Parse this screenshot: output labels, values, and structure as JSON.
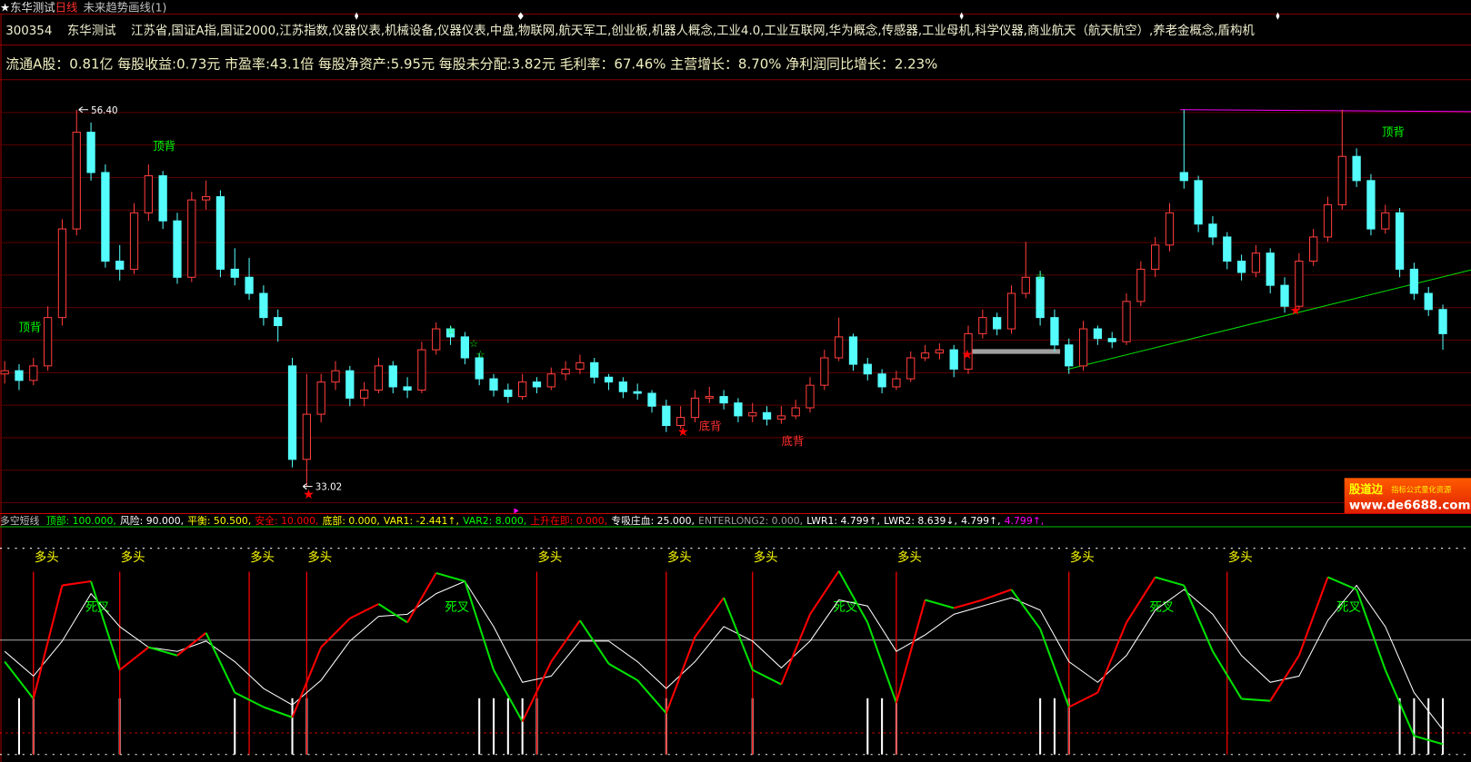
{
  "titlebar": {
    "star": "★",
    "name": "东华测试",
    "period": "日线",
    "tool": "未来趋势画线(1)"
  },
  "info_row": {
    "code": "300354",
    "name": "东华测试",
    "sectors": "江苏省,国证A指,国证2000,江苏指数,仪器仪表,机械设备,仪器仪表,中盘,物联网,航天军工,创业板,机器人概念,工业4.0,工业互联网,华为概念,传感器,工业母机,科学仪器,商业航天（航天航空）,养老金概念,盾构机"
  },
  "fundamentals": "流通A股：0.81亿 每股收益:0.73元 市盈率:43.1倍 每股净资产:5.95元 每股未分配:3.82元 毛利率：67.46% 主营增长：8.70% 净利润同比增长：2.23%",
  "main_chart_labels": {
    "high": "56.40",
    "low": "33.02",
    "top_div": "顶背",
    "bottom_div": "底背"
  },
  "indicator": {
    "name": "多空短线",
    "items": [
      {
        "text": "顶部: 100.000,",
        "color": "#00ff00"
      },
      {
        "text": "风险: 90.000,",
        "color": "#ffffff"
      },
      {
        "text": "平衡: 50.500,",
        "color": "#ffff00"
      },
      {
        "text": "安全: 10.000,",
        "color": "#ff0000"
      },
      {
        "text": "底部: 0.000,",
        "color": "#ffff00"
      },
      {
        "text": "VAR1: -2.441↑,",
        "color": "#ffff00"
      },
      {
        "text": "VAR2: 8.000,",
        "color": "#00ff00"
      },
      {
        "text": "上升在即: 0.000,",
        "color": "#ff0000"
      },
      {
        "text": "专吸庄血: 25.000,",
        "color": "#ffffff"
      },
      {
        "text": "ENTERLONG2: 0.000,",
        "color": "#a0a0a0"
      },
      {
        "text": "LWR1: 4.799↑,",
        "color": "#ffffff"
      },
      {
        "text": "LWR2: 8.639↓,",
        "color": "#ffffff"
      },
      {
        "text": "4.799↑,",
        "color": "#ffffff"
      },
      {
        "text": "4.799↑,",
        "color": "#ff00ff"
      }
    ],
    "bull_label": "多头",
    "death_cross_label": "死叉"
  },
  "watermark": {
    "brand": "股道边",
    "slogan": "指标公式量化资源",
    "url": "www.de6688.com"
  },
  "colors": {
    "up": "#ff3c3c",
    "down": "#54fcfc",
    "grid": "#5a0000",
    "k_up": "#ff0000",
    "k_down": "#00e000",
    "d_line": "#ffffff",
    "trend": "#00e000",
    "resist": "#ff00ff"
  },
  "chart_data": [
    {
      "type": "candlestick",
      "title": "",
      "ohlc": [
        [
          40.0,
          40.8,
          39.4,
          40.2
        ],
        [
          40.2,
          40.6,
          39.0,
          39.6
        ],
        [
          39.6,
          41.0,
          39.3,
          40.5
        ],
        [
          40.5,
          44.2,
          40.2,
          43.5
        ],
        [
          43.5,
          49.6,
          43.0,
          49.0
        ],
        [
          49.0,
          56.4,
          48.6,
          55.0
        ],
        [
          55.0,
          55.6,
          52.0,
          52.5
        ],
        [
          52.5,
          53.0,
          46.6,
          47.0
        ],
        [
          47.0,
          48.0,
          45.8,
          46.5
        ],
        [
          46.5,
          50.6,
          46.2,
          50.0
        ],
        [
          50.0,
          53.0,
          49.5,
          52.3
        ],
        [
          52.3,
          52.6,
          49.0,
          49.5
        ],
        [
          49.5,
          50.0,
          45.6,
          46.0
        ],
        [
          46.0,
          51.3,
          45.7,
          50.8
        ],
        [
          50.8,
          52.0,
          50.2,
          51.0
        ],
        [
          51.0,
          51.4,
          46.0,
          46.5
        ],
        [
          46.5,
          47.8,
          45.5,
          46.0
        ],
        [
          46.0,
          47.2,
          44.6,
          45.0
        ],
        [
          45.0,
          45.5,
          43.0,
          43.5
        ],
        [
          43.5,
          44.0,
          42.0,
          43.0
        ],
        [
          40.5,
          41.0,
          34.2,
          34.7
        ],
        [
          34.7,
          40.0,
          33.02,
          37.5
        ],
        [
          37.5,
          40.0,
          37.0,
          39.5
        ],
        [
          39.5,
          40.8,
          39.0,
          40.2
        ],
        [
          40.2,
          40.5,
          38.0,
          38.5
        ],
        [
          38.5,
          39.5,
          38.0,
          39.0
        ],
        [
          39.0,
          41.0,
          38.8,
          40.5
        ],
        [
          40.5,
          40.8,
          38.8,
          39.2
        ],
        [
          39.2,
          39.8,
          38.5,
          39.0
        ],
        [
          39.0,
          42.0,
          38.8,
          41.5
        ],
        [
          41.5,
          43.2,
          41.2,
          42.8
        ],
        [
          42.8,
          43.0,
          41.8,
          42.3
        ],
        [
          42.3,
          42.6,
          40.6,
          41.0
        ],
        [
          41.0,
          41.3,
          39.3,
          39.7
        ],
        [
          39.7,
          40.0,
          38.6,
          39.0
        ],
        [
          39.0,
          39.4,
          38.2,
          38.6
        ],
        [
          38.6,
          40.0,
          38.4,
          39.5
        ],
        [
          39.5,
          39.8,
          38.8,
          39.2
        ],
        [
          39.2,
          40.4,
          39.0,
          40.0
        ],
        [
          40.0,
          40.8,
          39.6,
          40.3
        ],
        [
          40.3,
          41.2,
          40.0,
          40.7
        ],
        [
          40.7,
          41.0,
          39.4,
          39.8
        ],
        [
          39.8,
          40.0,
          39.0,
          39.5
        ],
        [
          39.5,
          39.8,
          38.5,
          38.9
        ],
        [
          38.9,
          39.4,
          38.4,
          38.8
        ],
        [
          38.8,
          39.0,
          37.6,
          38.0
        ],
        [
          38.0,
          38.4,
          36.4,
          36.8
        ],
        [
          36.8,
          38.0,
          36.6,
          37.3
        ],
        [
          37.3,
          39.0,
          37.0,
          38.5
        ],
        [
          38.5,
          39.2,
          38.2,
          38.6
        ],
        [
          38.6,
          39.0,
          37.8,
          38.2
        ],
        [
          38.2,
          38.5,
          37.0,
          37.4
        ],
        [
          37.4,
          38.2,
          37.0,
          37.6
        ],
        [
          37.6,
          38.0,
          36.8,
          37.2
        ],
        [
          37.2,
          38.0,
          36.9,
          37.4
        ],
        [
          37.4,
          38.4,
          37.2,
          37.9
        ],
        [
          37.9,
          39.8,
          37.6,
          39.3
        ],
        [
          39.3,
          41.5,
          39.0,
          41.0
        ],
        [
          41.0,
          43.5,
          40.8,
          42.3
        ],
        [
          42.3,
          42.5,
          40.2,
          40.6
        ],
        [
          40.6,
          41.0,
          39.6,
          40.0
        ],
        [
          40.0,
          40.3,
          38.8,
          39.2
        ],
        [
          39.2,
          40.2,
          39.0,
          39.7
        ],
        [
          39.7,
          41.4,
          39.5,
          41.0
        ],
        [
          41.0,
          41.8,
          40.8,
          41.3
        ],
        [
          41.3,
          41.9,
          40.9,
          41.5
        ],
        [
          41.5,
          41.8,
          39.8,
          40.3
        ],
        [
          40.3,
          43.0,
          40.0,
          42.5
        ],
        [
          42.5,
          44.0,
          42.2,
          43.5
        ],
        [
          43.5,
          43.8,
          42.4,
          42.8
        ],
        [
          42.8,
          45.5,
          42.5,
          45.0
        ],
        [
          45.0,
          48.2,
          44.7,
          46.0
        ],
        [
          46.0,
          46.4,
          43.0,
          43.5
        ],
        [
          43.5,
          44.0,
          41.4,
          41.8
        ],
        [
          41.8,
          42.2,
          40.0,
          40.5
        ],
        [
          40.5,
          43.3,
          40.2,
          42.8
        ],
        [
          42.8,
          43.0,
          41.8,
          42.2
        ],
        [
          42.2,
          42.6,
          41.6,
          42.0
        ],
        [
          42.0,
          45.0,
          41.8,
          44.5
        ],
        [
          44.5,
          47.0,
          44.2,
          46.5
        ],
        [
          46.5,
          48.5,
          46.0,
          48.0
        ],
        [
          48.0,
          50.6,
          47.6,
          50.0
        ],
        [
          52.5,
          56.4,
          51.5,
          52.0
        ],
        [
          52.0,
          52.3,
          48.8,
          49.3
        ],
        [
          49.3,
          49.8,
          48.0,
          48.5
        ],
        [
          48.5,
          48.8,
          46.5,
          47.0
        ],
        [
          47.0,
          47.4,
          45.8,
          46.3
        ],
        [
          46.3,
          48.0,
          46.0,
          47.5
        ],
        [
          47.5,
          47.8,
          45.0,
          45.5
        ],
        [
          45.5,
          46.0,
          43.8,
          44.2
        ],
        [
          44.2,
          47.5,
          44.0,
          47.0
        ],
        [
          47.0,
          49.0,
          46.7,
          48.5
        ],
        [
          48.5,
          51.0,
          48.2,
          50.5
        ],
        [
          50.5,
          56.4,
          50.2,
          53.5
        ],
        [
          53.5,
          54.0,
          51.6,
          52.0
        ],
        [
          52.0,
          52.4,
          48.6,
          49.0
        ],
        [
          49.0,
          50.5,
          48.7,
          50.0
        ],
        [
          50.0,
          50.3,
          46.0,
          46.5
        ],
        [
          46.5,
          46.9,
          44.6,
          45.0
        ],
        [
          45.0,
          45.4,
          43.6,
          44.0
        ],
        [
          44.0,
          44.3,
          41.5,
          42.5
        ]
      ],
      "ylim": [
        32.5,
        57.0
      ],
      "grid": true
    },
    {
      "type": "line",
      "title": "多空短线",
      "ylim": [
        0,
        100
      ],
      "levels": [
        100,
        90,
        50.5,
        10,
        0
      ],
      "k": [
        45,
        27,
        82,
        84,
        41,
        52,
        48,
        59,
        30,
        23,
        18,
        52,
        66,
        73,
        64,
        88,
        84,
        41,
        16,
        45,
        65,
        44,
        36,
        20,
        57,
        76,
        41,
        34,
        68,
        89,
        64,
        25,
        75,
        71,
        75,
        80,
        61,
        23,
        30,
        64,
        86,
        82,
        50,
        27,
        26,
        48,
        86,
        80,
        41,
        9,
        5
      ],
      "d": [
        50,
        38,
        55,
        78,
        62,
        52,
        50,
        55,
        45,
        32,
        24,
        36,
        55,
        67,
        68,
        78,
        84,
        62,
        35,
        38,
        55,
        55,
        45,
        32,
        45,
        62,
        55,
        42,
        55,
        75,
        72,
        50,
        58,
        68,
        72,
        76,
        70,
        45,
        35,
        48,
        70,
        80,
        68,
        48,
        35,
        38,
        65,
        82,
        62,
        30,
        12
      ],
      "bull_signal_candles": [
        2,
        8,
        17,
        21,
        37,
        46,
        52,
        62,
        74,
        85
      ],
      "death_cross_candles": [
        6,
        31,
        58,
        80,
        93
      ],
      "signal_bar_candles": [
        1,
        2,
        8,
        16,
        20,
        21,
        33,
        34,
        35,
        36,
        37,
        46,
        52,
        60,
        61,
        62,
        72,
        73,
        74,
        97,
        98,
        99,
        100
      ]
    }
  ]
}
